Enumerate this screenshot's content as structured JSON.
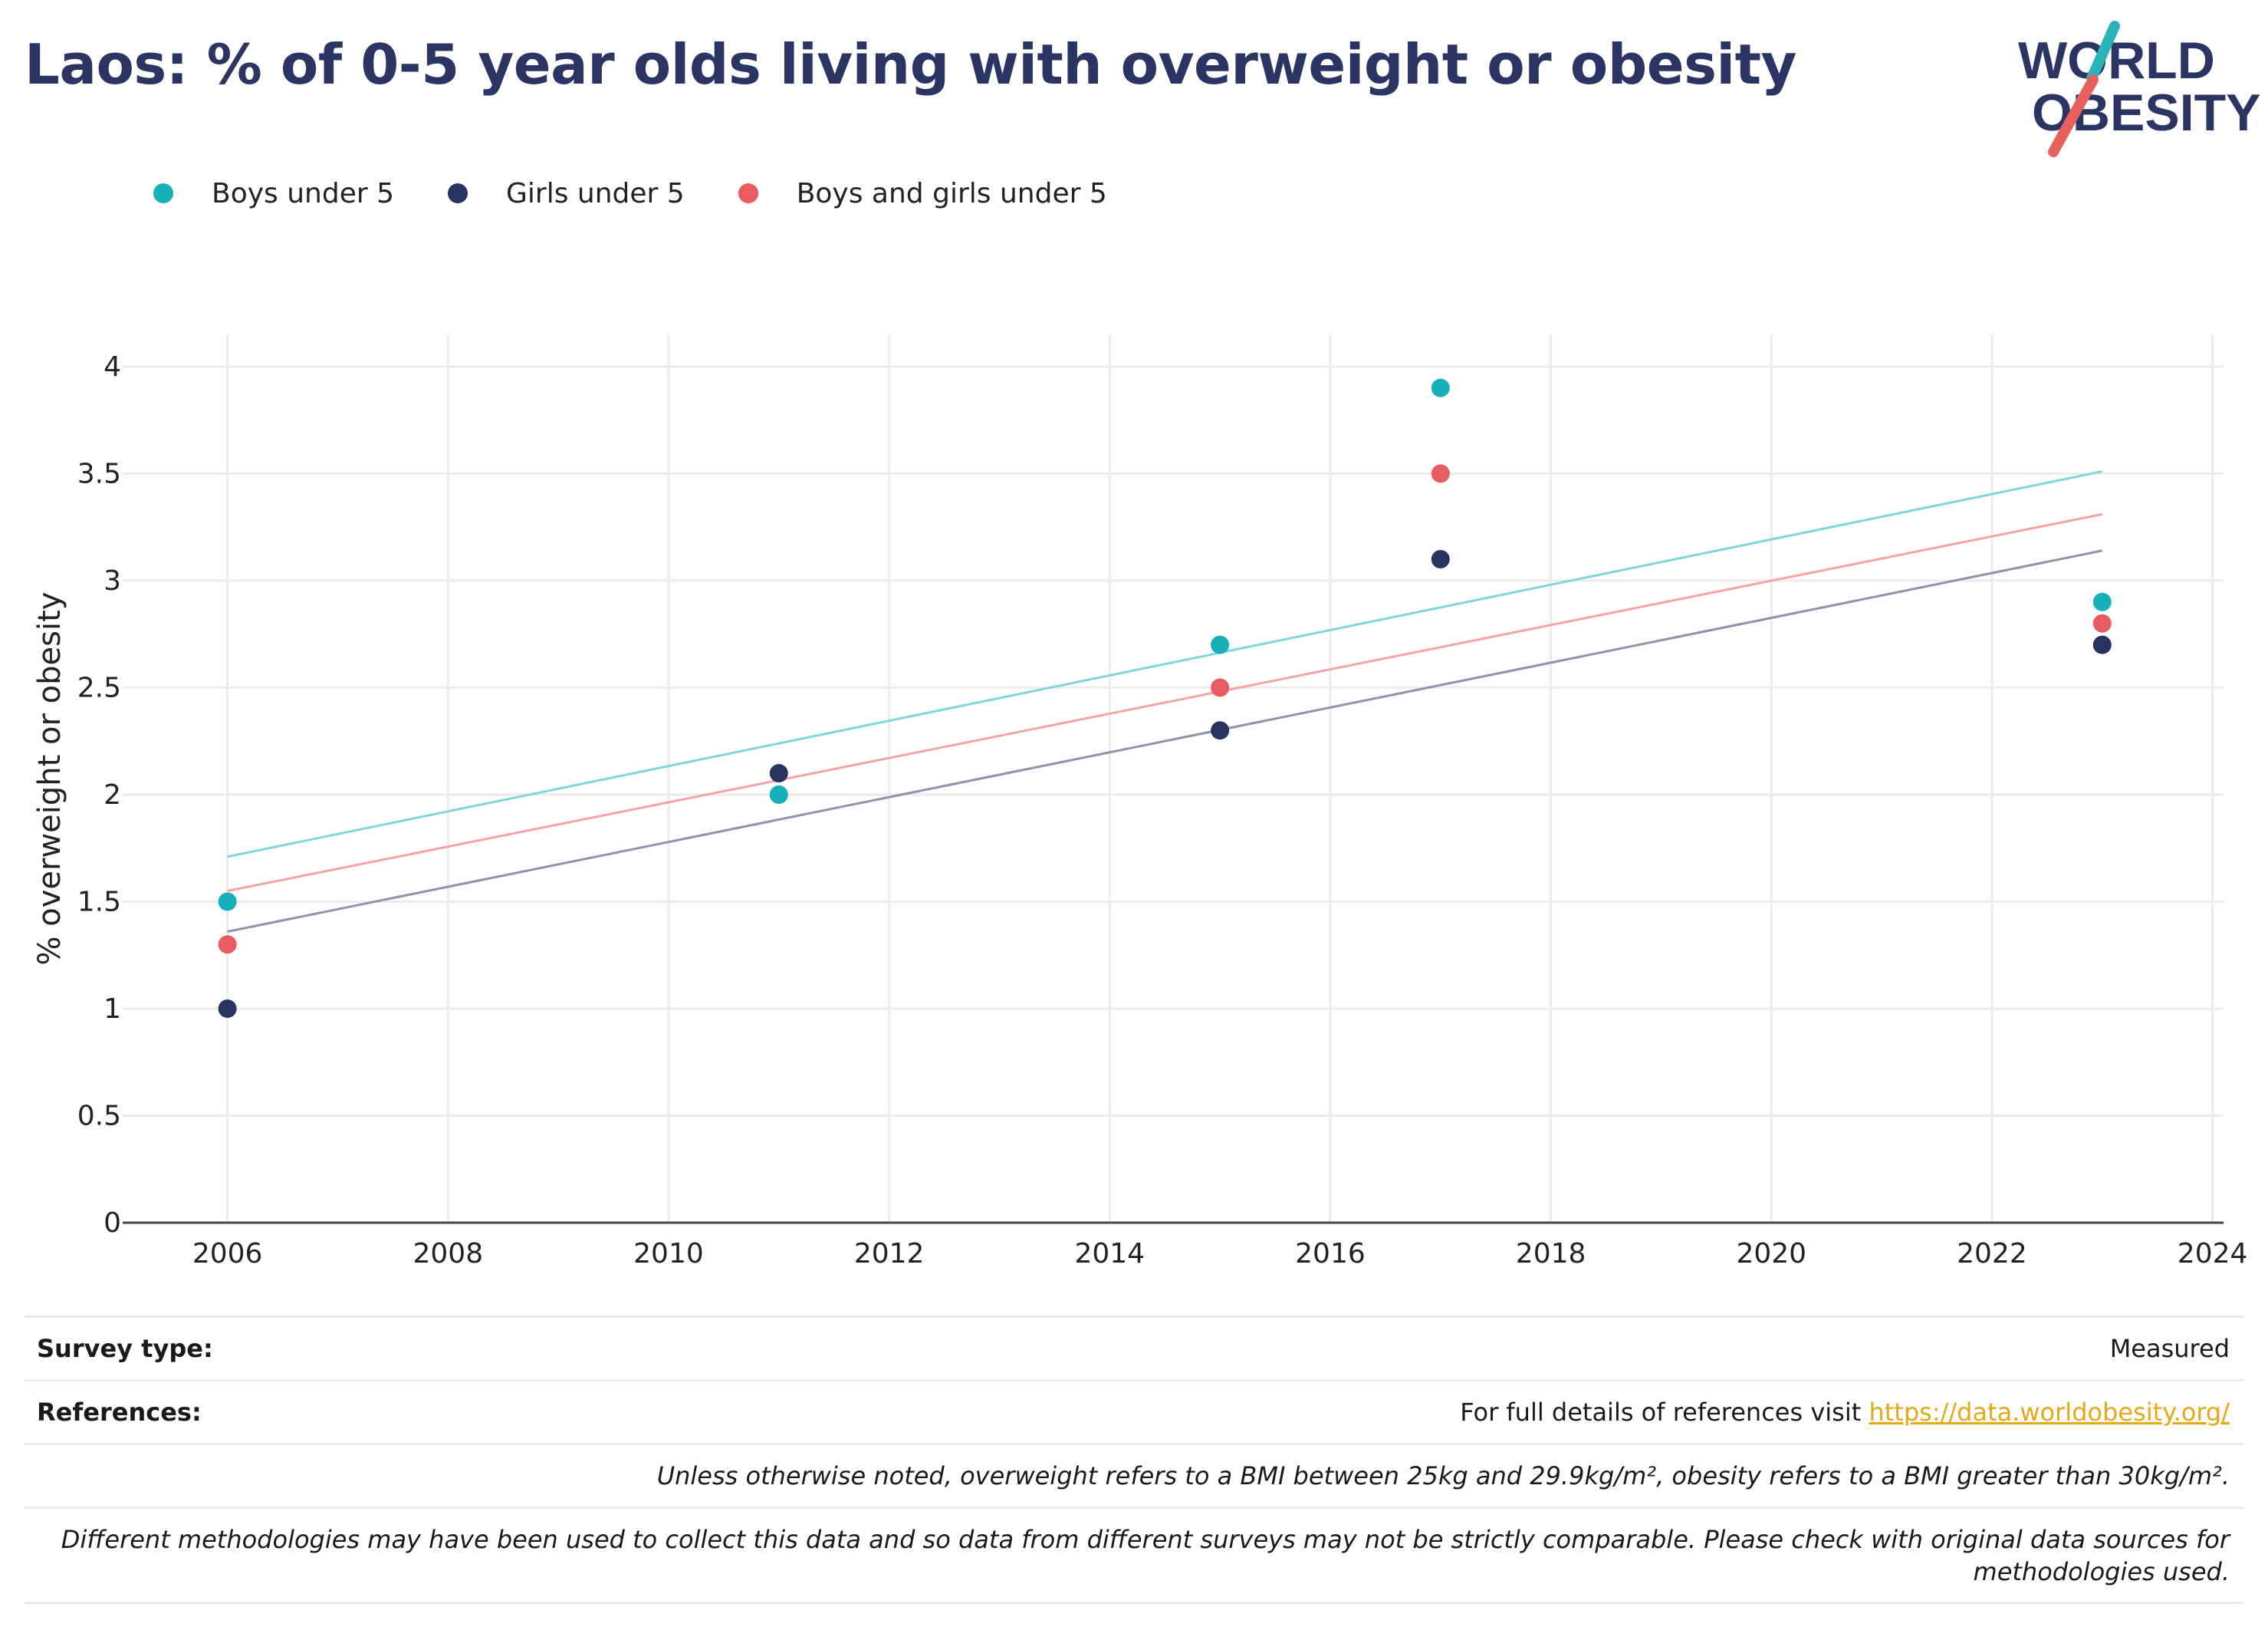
{
  "title": "Laos: % of 0-5 year olds living with overweight or obesity",
  "logo": {
    "line1": "WORLD",
    "line2": "OBESITY",
    "accent1": "#2bb3b8",
    "accent2": "#e8605a",
    "text_color": "#2a3564"
  },
  "legend": [
    {
      "label": "Boys under 5",
      "color": "#14b1bb"
    },
    {
      "label": "Girls under 5",
      "color": "#27345f"
    },
    {
      "label": "Boys and girls under 5",
      "color": "#e85c5f"
    }
  ],
  "chart_data": {
    "type": "scatter",
    "title": "Laos: % of 0-5 year olds living with overweight or obesity",
    "xlabel": "",
    "ylabel": "% overweight or obesity",
    "xlim": [
      2005.05,
      2024.1
    ],
    "ylim": [
      0,
      4.15
    ],
    "x_ticks": [
      2006,
      2008,
      2010,
      2012,
      2014,
      2016,
      2018,
      2020,
      2022,
      2024
    ],
    "y_ticks": [
      0,
      0.5,
      1,
      1.5,
      2,
      2.5,
      3,
      3.5,
      4
    ],
    "y_tick_labels": [
      "0",
      "0.5",
      "1",
      "1.5",
      "2",
      "2.5",
      "3",
      "3.5",
      "4"
    ],
    "grid": true,
    "legend_position": "top-left",
    "series": [
      {
        "name": "Boys under 5",
        "color": "#14b1bb",
        "trend_color": "#7fd6dc",
        "x": [
          2006,
          2011,
          2015,
          2017,
          2023
        ],
        "y": [
          1.5,
          2.0,
          2.7,
          3.9,
          2.9
        ],
        "trend": {
          "x": [
            2006,
            2023
          ],
          "y": [
            1.71,
            3.51
          ]
        }
      },
      {
        "name": "Girls under 5",
        "color": "#27345f",
        "trend_color": "#8d93a8",
        "x": [
          2006,
          2011,
          2015,
          2017,
          2023
        ],
        "y": [
          1.0,
          2.1,
          2.3,
          3.1,
          2.7
        ],
        "trend": {
          "x": [
            2006,
            2023
          ],
          "y": [
            1.36,
            3.14
          ]
        }
      },
      {
        "name": "Boys and girls under 5",
        "color": "#e85c5f",
        "trend_color": "#f2a5a5",
        "x": [
          2006,
          2011,
          2015,
          2017,
          2023
        ],
        "y": [
          1.3,
          2.0,
          2.5,
          3.5,
          2.8
        ],
        "trend": {
          "x": [
            2006,
            2023
          ],
          "y": [
            1.55,
            3.31
          ]
        }
      }
    ]
  },
  "footer": {
    "survey_label": "Survey type:",
    "survey_value": "Measured",
    "references_label": "References:",
    "references_text": "For full details of references visit ",
    "references_link": "https://data.worldobesity.org/",
    "note1": "Unless otherwise noted, overweight refers to a BMI between 25kg and 29.9kg/m², obesity refers to a BMI greater than 30kg/m².",
    "note2a": "Different methodologies may have been used to collect this data and so data from different surveys may not be strictly comparable. Please check with original data sources for",
    "note2b": "methodologies used."
  }
}
